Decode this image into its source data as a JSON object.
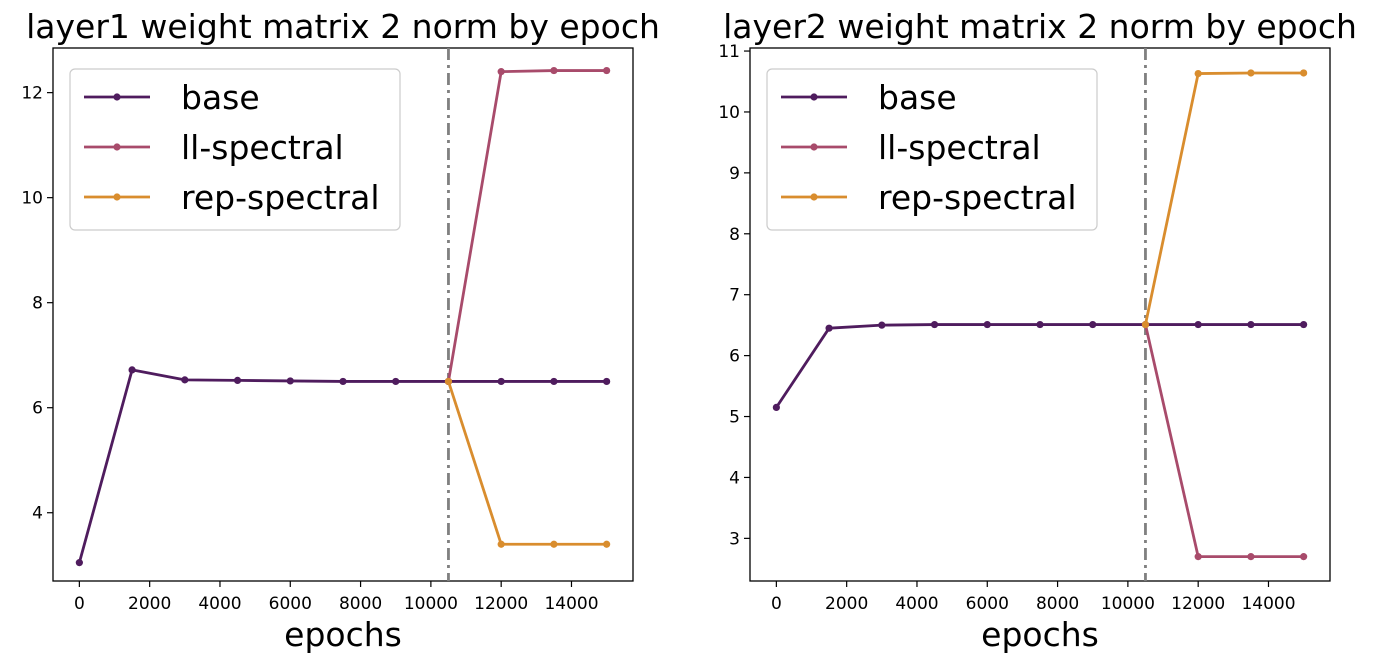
{
  "chart_data": [
    {
      "type": "line",
      "title": "layer1 weight matrix 2 norm by epoch",
      "xlabel": "epochs",
      "ylabel": "",
      "xlim": [
        -750,
        15750
      ],
      "ylim": [
        2.7,
        12.85
      ],
      "x_ticks": [
        0,
        2000,
        4000,
        6000,
        8000,
        10000,
        12000,
        14000
      ],
      "x_tick_labels": [
        "0",
        "2000",
        "4000",
        "6000",
        "8000",
        "10000",
        "12000",
        "14000"
      ],
      "y_ticks": [
        4,
        6,
        8,
        10,
        12
      ],
      "y_tick_labels": [
        "4",
        "6",
        "8",
        "10",
        "12"
      ],
      "grid": false,
      "legend_placement": "top-left",
      "vline": {
        "x": 10500,
        "style": "dash-dot",
        "color": "#808080"
      },
      "series": [
        {
          "name": "base",
          "color": "#4f1c5e",
          "x": [
            0,
            1500,
            3000,
            4500,
            6000,
            7500,
            9000,
            10500,
            12000,
            13500,
            15000
          ],
          "y": [
            3.05,
            6.72,
            6.53,
            6.52,
            6.51,
            6.5,
            6.5,
            6.5,
            6.5,
            6.5,
            6.5
          ]
        },
        {
          "name": "ll-spectral",
          "color": "#a84b6b",
          "x": [
            10500,
            12000,
            13500,
            15000
          ],
          "y": [
            6.5,
            12.4,
            12.42,
            12.42
          ]
        },
        {
          "name": "rep-spectral",
          "color": "#d98d2e",
          "x": [
            10500,
            12000,
            13500,
            15000
          ],
          "y": [
            6.5,
            3.4,
            3.4,
            3.4
          ]
        }
      ]
    },
    {
      "type": "line",
      "title": "layer2 weight matrix 2 norm by epoch",
      "xlabel": "epochs",
      "ylabel": "",
      "xlim": [
        -750,
        15750
      ],
      "ylim": [
        2.3,
        11.05
      ],
      "x_ticks": [
        0,
        2000,
        4000,
        6000,
        8000,
        10000,
        12000,
        14000
      ],
      "x_tick_labels": [
        "0",
        "2000",
        "4000",
        "6000",
        "8000",
        "10000",
        "12000",
        "14000"
      ],
      "y_ticks": [
        3,
        4,
        5,
        6,
        7,
        8,
        9,
        10,
        11
      ],
      "y_tick_labels": [
        "3",
        "4",
        "5",
        "6",
        "7",
        "8",
        "9",
        "10",
        "11"
      ],
      "grid": false,
      "legend_placement": "top-left",
      "vline": {
        "x": 10500,
        "style": "dash-dot",
        "color": "#808080"
      },
      "series": [
        {
          "name": "base",
          "color": "#4f1c5e",
          "x": [
            0,
            1500,
            3000,
            4500,
            6000,
            7500,
            9000,
            10500,
            12000,
            13500,
            15000
          ],
          "y": [
            5.15,
            6.45,
            6.5,
            6.51,
            6.51,
            6.51,
            6.51,
            6.51,
            6.51,
            6.51,
            6.51
          ]
        },
        {
          "name": "ll-spectral",
          "color": "#a84b6b",
          "x": [
            10500,
            12000,
            13500,
            15000
          ],
          "y": [
            6.51,
            2.7,
            2.7,
            2.7
          ]
        },
        {
          "name": "rep-spectral",
          "color": "#d98d2e",
          "x": [
            10500,
            12000,
            13500,
            15000
          ],
          "y": [
            6.51,
            10.63,
            10.64,
            10.64
          ]
        }
      ]
    }
  ]
}
